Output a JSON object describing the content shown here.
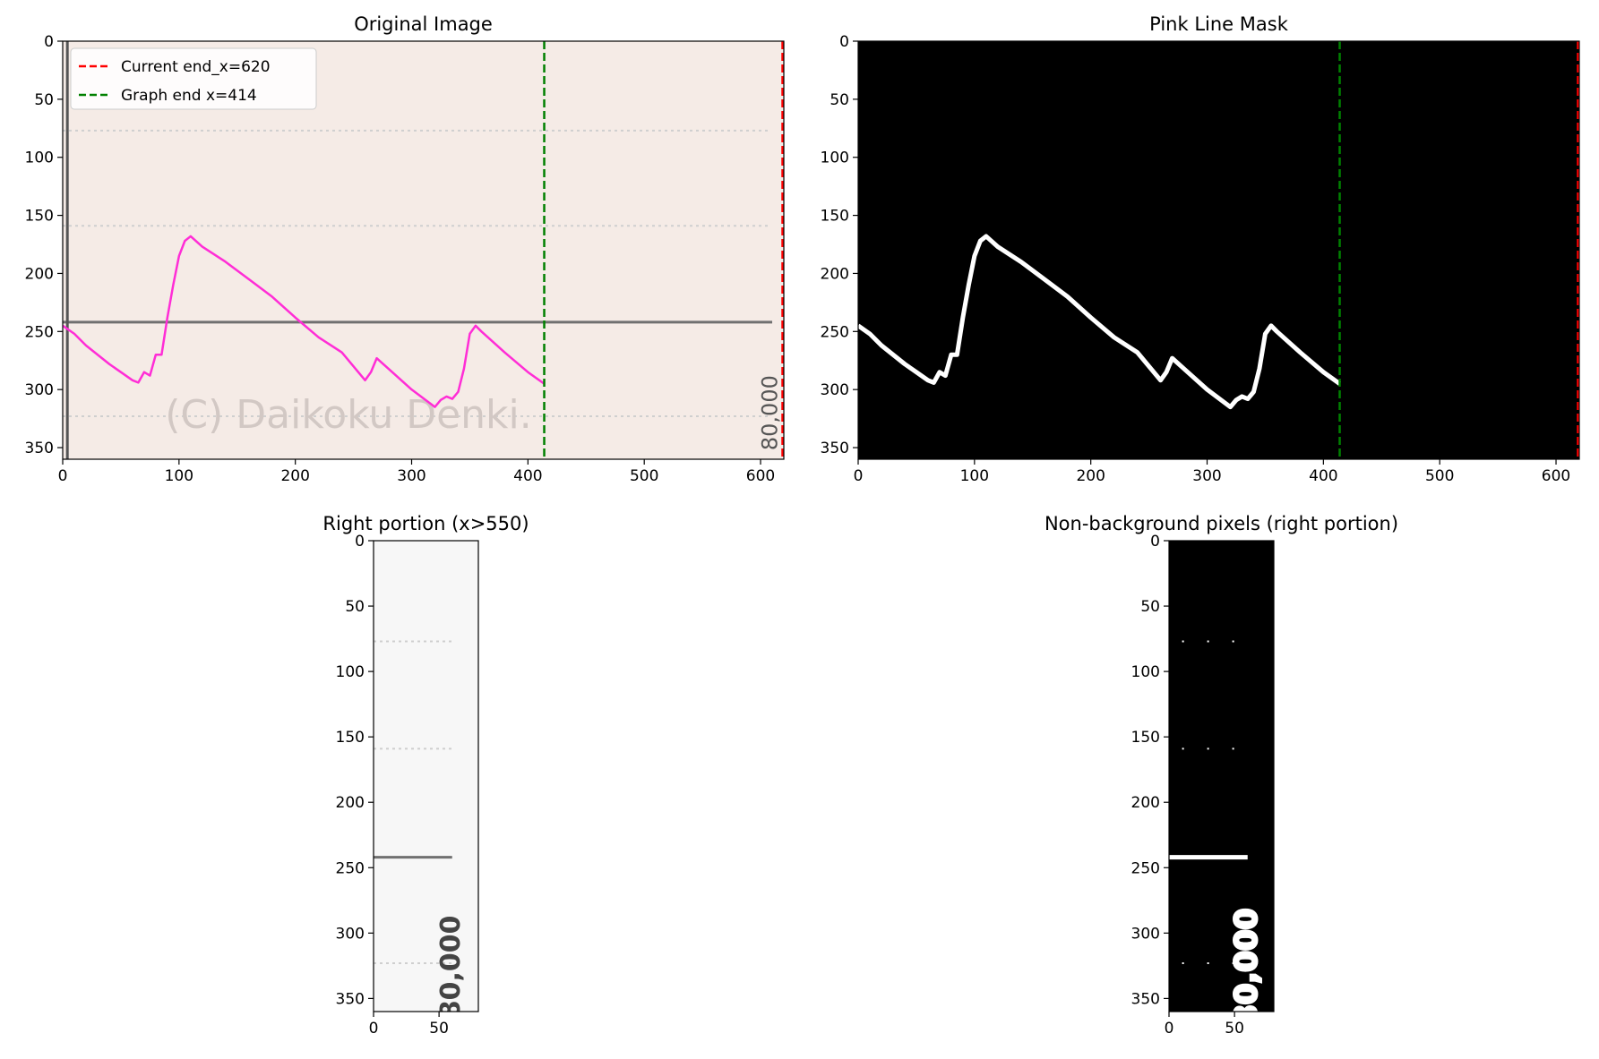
{
  "chart_data": [
    {
      "type": "line",
      "title": "Original Image",
      "xlim": [
        0,
        620
      ],
      "ylim": [
        360,
        0
      ],
      "x_ticks": [
        0,
        100,
        200,
        300,
        400,
        500,
        600
      ],
      "y_ticks": [
        0,
        50,
        100,
        150,
        200,
        250,
        300,
        350
      ],
      "background": "#f5ebe6",
      "legend_position": "upper-left",
      "legend": [
        {
          "label": "Current end_x=620",
          "color": "#ff0000",
          "style": "dashed"
        },
        {
          "label": "Graph end x=414",
          "color": "#008000",
          "style": "dashed"
        }
      ],
      "vlines": [
        {
          "x": 414,
          "color": "#008000",
          "style": "dashed"
        },
        {
          "x": 620,
          "color": "#ff0000",
          "style": "dashed"
        }
      ],
      "image_text": {
        "watermark": "(C) Daikoku Denki.",
        "value_label": "80,000"
      },
      "hline_y": 242,
      "dotted_rows": [
        77,
        159,
        323
      ],
      "series": [
        {
          "color": "#ff2dd6",
          "x": [
            0,
            10,
            20,
            30,
            40,
            50,
            60,
            65,
            70,
            75,
            80,
            85,
            90,
            95,
            100,
            105,
            110,
            120,
            140,
            160,
            180,
            200,
            220,
            240,
            260,
            265,
            270,
            280,
            300,
            320,
            325,
            330,
            335,
            340,
            345,
            350,
            355,
            360,
            380,
            400,
            414
          ],
          "y": [
            245,
            252,
            262,
            270,
            278,
            285,
            292,
            294,
            285,
            288,
            270,
            270,
            238,
            210,
            185,
            172,
            168,
            177,
            190,
            205,
            220,
            238,
            255,
            268,
            292,
            285,
            273,
            282,
            300,
            315,
            309,
            306,
            308,
            302,
            282,
            252,
            245,
            250,
            268,
            285,
            295
          ]
        }
      ]
    },
    {
      "type": "line",
      "title": "Pink Line Mask",
      "xlim": [
        0,
        620
      ],
      "ylim": [
        360,
        0
      ],
      "x_ticks": [
        0,
        100,
        200,
        300,
        400,
        500,
        600
      ],
      "y_ticks": [
        0,
        50,
        100,
        150,
        200,
        250,
        300,
        350
      ],
      "background": "#000000",
      "vlines": [
        {
          "x": 414,
          "color": "#008000",
          "style": "dashed"
        },
        {
          "x": 620,
          "color": "#ff0000",
          "style": "dashed"
        }
      ],
      "series": [
        {
          "color": "#ffffff",
          "x": [
            0,
            10,
            20,
            30,
            40,
            50,
            60,
            65,
            70,
            75,
            80,
            85,
            90,
            95,
            100,
            105,
            110,
            120,
            140,
            160,
            180,
            200,
            220,
            240,
            260,
            265,
            270,
            280,
            300,
            320,
            325,
            330,
            335,
            340,
            345,
            350,
            355,
            360,
            380,
            400,
            414
          ],
          "y": [
            245,
            252,
            262,
            270,
            278,
            285,
            292,
            294,
            285,
            288,
            270,
            270,
            238,
            210,
            185,
            172,
            168,
            177,
            190,
            205,
            220,
            238,
            255,
            268,
            292,
            285,
            273,
            282,
            300,
            315,
            309,
            306,
            308,
            302,
            282,
            252,
            245,
            250,
            268,
            285,
            295
          ]
        }
      ]
    },
    {
      "type": "heatmap",
      "title": "Right portion (x>550)",
      "xlim": [
        0,
        80
      ],
      "ylim": [
        360,
        0
      ],
      "x_ticks": [
        0,
        50
      ],
      "y_ticks": [
        0,
        50,
        100,
        150,
        200,
        250,
        300,
        350
      ],
      "background": "#f7f7f7",
      "image_text": {
        "value_label": "80,000"
      },
      "hline_y": 242,
      "hline_x": [
        0,
        60
      ],
      "dotted_rows": [
        77,
        159,
        323
      ],
      "dotted_x": [
        0,
        60
      ]
    },
    {
      "type": "heatmap",
      "title": "Non-background pixels (right portion)",
      "xlim": [
        0,
        80
      ],
      "ylim": [
        360,
        0
      ],
      "x_ticks": [
        0,
        50
      ],
      "y_ticks": [
        0,
        50,
        100,
        150,
        200,
        250,
        300,
        350
      ],
      "background": "#000000",
      "image_text": {
        "value_label": "80,000"
      },
      "hline_y": 242,
      "hline_x": [
        0,
        60
      ],
      "dotted_rows": [
        77,
        159,
        323
      ],
      "dotted_x": [
        10,
        52
      ]
    }
  ]
}
